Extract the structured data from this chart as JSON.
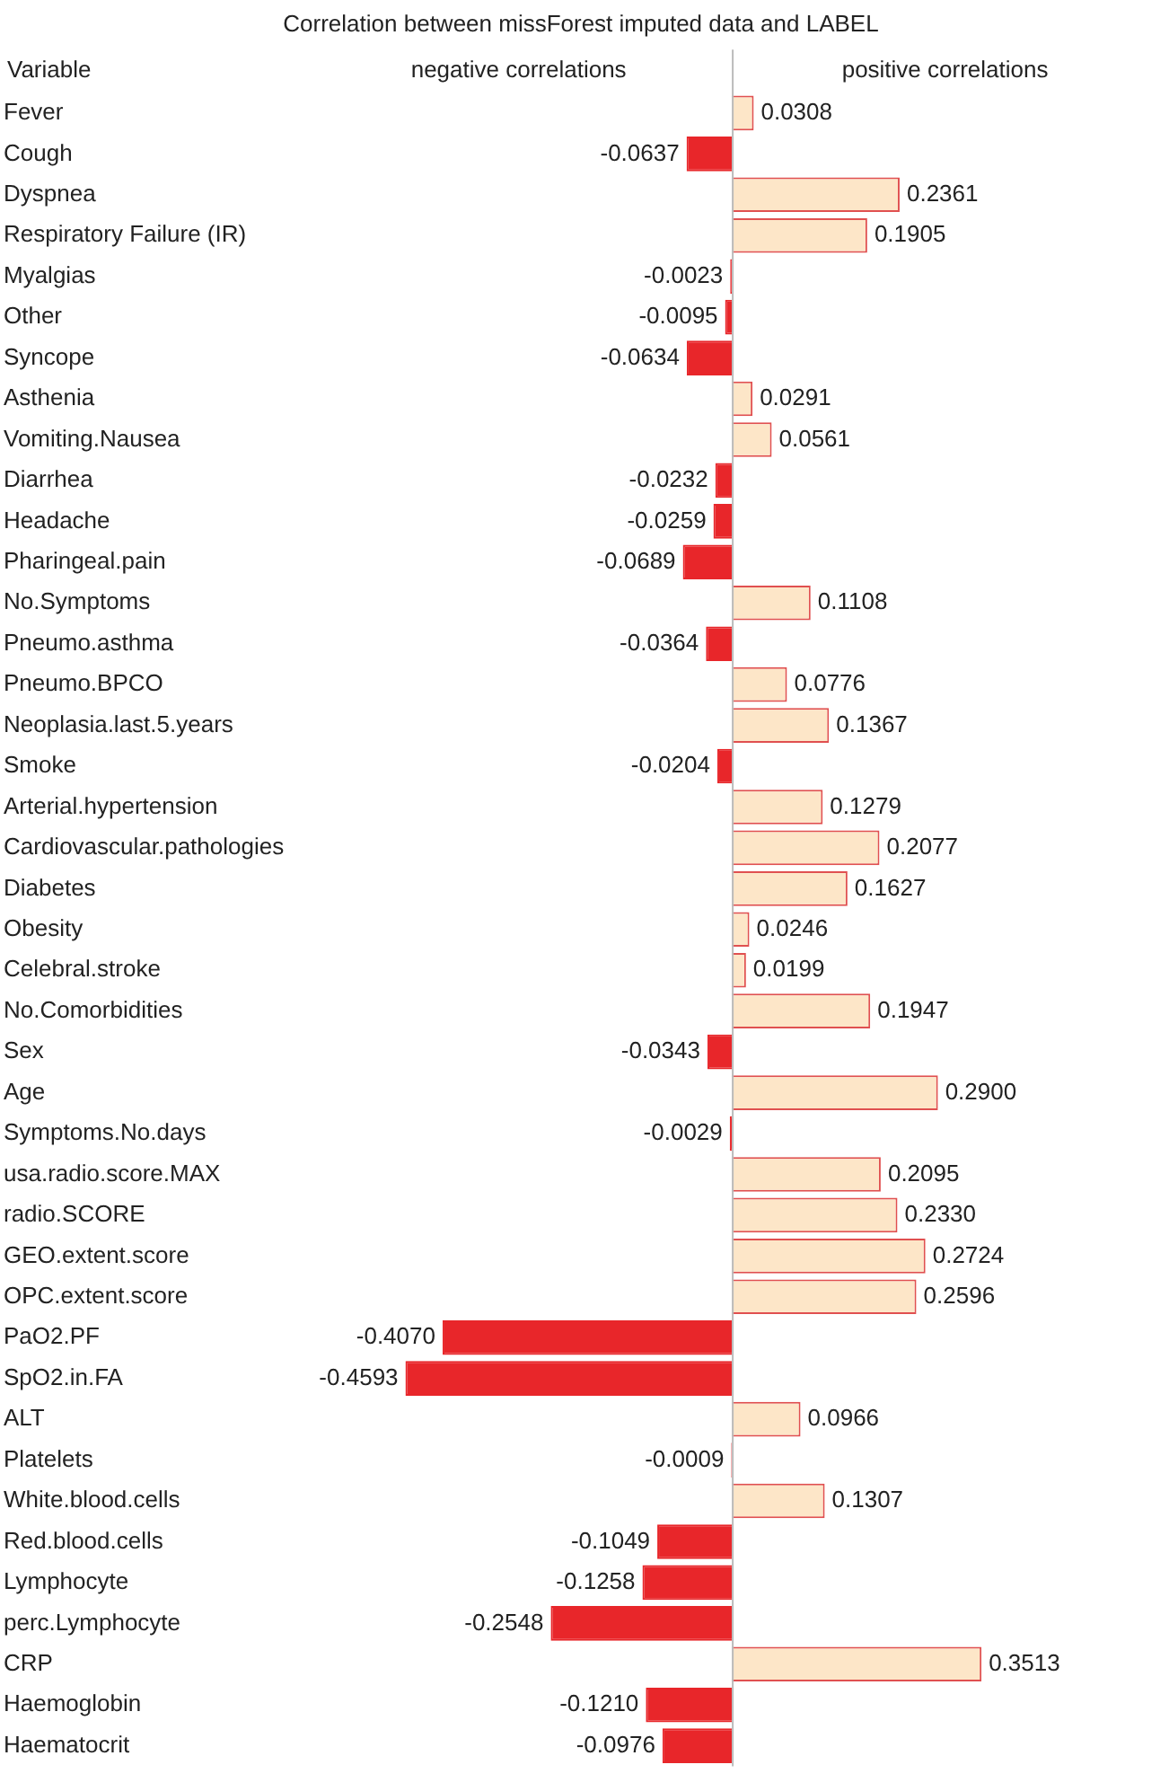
{
  "chart_data": {
    "type": "bar",
    "orientation": "horizontal",
    "title": "Correlation between missForest imputed data and LABEL",
    "annotations": [
      "Variable",
      "negative correlations",
      "positive correlations"
    ],
    "categories": [
      "Fever",
      "Cough",
      "Dyspnea",
      "Respiratory Failure (IR)",
      "Myalgias",
      "Other",
      "Syncope",
      "Asthenia",
      "Vomiting.Nausea",
      "Diarrhea",
      "Headache",
      "Pharingeal.pain",
      "No.Symptoms",
      "Pneumo.asthma",
      "Pneumo.BPCO",
      "Neoplasia.last.5.years",
      "Smoke",
      "Arterial.hypertension",
      "Cardiovascular.pathologies",
      "Diabetes",
      "Obesity",
      "Celebral.stroke",
      "No.Comorbidities",
      "Sex",
      "Age",
      "Symptoms.No.days",
      "usa.radio.score.MAX",
      "radio.SCORE",
      "GEO.extent.score",
      "OPC.extent.score",
      "PaO2.PF",
      "SpO2.in.FA",
      "ALT",
      "Platelets",
      "White.blood.cells",
      "Red.blood.cells",
      "Lymphocyte",
      "perc.Lymphocyte",
      "CRP",
      "Haemoglobin",
      "Haematocrit"
    ],
    "values": [
      0.0308,
      -0.0637,
      0.2361,
      0.1905,
      -0.0023,
      -0.0095,
      -0.0634,
      0.0291,
      0.0561,
      -0.0232,
      -0.0259,
      -0.0689,
      0.1108,
      -0.0364,
      0.0776,
      0.1367,
      -0.0204,
      0.1279,
      0.2077,
      0.1627,
      0.0246,
      0.0199,
      0.1947,
      -0.0343,
      0.29,
      -0.0029,
      0.2095,
      0.233,
      0.2724,
      0.2596,
      -0.407,
      -0.4593,
      0.0966,
      -0.0009,
      0.1307,
      -0.1049,
      -0.1258,
      -0.2548,
      0.3513,
      -0.121,
      -0.0976
    ],
    "value_labels": [
      "0.0308",
      "-0.0637",
      "0.2361",
      "0.1905",
      "-0.0023",
      "-0.0095",
      "-0.0634",
      "0.0291",
      "0.0561",
      "-0.0232",
      "-0.0259",
      "-0.0689",
      "0.1108",
      "-0.0364",
      "0.0776",
      "0.1367",
      "-0.0204",
      "0.1279",
      "0.2077",
      "0.1627",
      "0.0246",
      "0.0199",
      "0.1947",
      "-0.0343",
      "0.2900",
      "-0.0029",
      "0.2095",
      "0.2330",
      "0.2724",
      "0.2596",
      "-0.4070",
      "-0.4593",
      "0.0966",
      "-0.0009",
      "0.1307",
      "-0.1049",
      "-0.1258",
      "-0.2548",
      "0.3513",
      "-0.1210",
      "-0.0976"
    ],
    "colors": [
      "#fde6c8",
      "#e8262a",
      "#fde6c8",
      "#fde6c8",
      "#e8262a",
      "#e8262a",
      "#e8262a",
      "#fde6c8",
      "#fde6c8",
      "#e8262a",
      "#e8262a",
      "#e8262a",
      "#fde6c8",
      "#e8262a",
      "#fde6c8",
      "#fde6c8",
      "#e8262a",
      "#fde6c8",
      "#fde6c8",
      "#fde6c8",
      "#fde6c8",
      "#fde6c8",
      "#fde6c8",
      "#e8262a",
      "#fde6c8",
      "#e8262a",
      "#fde6c8",
      "#fde6c8",
      "#fde6c8",
      "#fde6c8",
      "#e8262a",
      "#e8262a",
      "#fde6c8",
      "#e8262a",
      "#fde6c8",
      "#e8262a",
      "#e8262a",
      "#e8262a",
      "#fde6c8",
      "#e8262a",
      "#e8262a"
    ],
    "tick_labels": "y",
    "grid": false,
    "legend": false
  }
}
